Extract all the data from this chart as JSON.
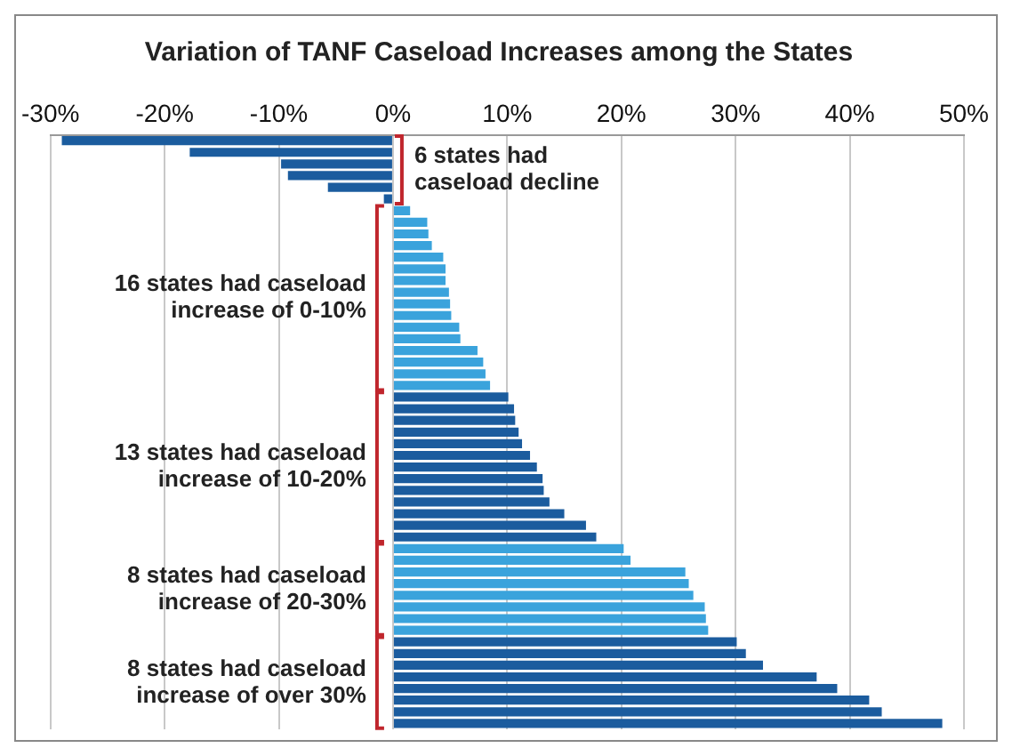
{
  "chart_data": {
    "type": "bar",
    "orientation": "horizontal",
    "title": "Variation of TANF Caseload Increases among the States",
    "categories": [
      null,
      null,
      null,
      null,
      null,
      null,
      null,
      null,
      null,
      null,
      null,
      null,
      null,
      null,
      null,
      null,
      null,
      null,
      null,
      null,
      null,
      null,
      null,
      null,
      null,
      null,
      null,
      null,
      null,
      null,
      null,
      null,
      null,
      null,
      null,
      null,
      null,
      null,
      null,
      null,
      null,
      null,
      null,
      null,
      null,
      null,
      null,
      null,
      null,
      null,
      null
    ],
    "values": [
      -29,
      -17.8,
      -9.8,
      -9.2,
      -5.7,
      -0.8,
      1.5,
      3,
      3.1,
      3.4,
      4.4,
      4.6,
      4.6,
      4.9,
      5,
      5.1,
      5.8,
      5.9,
      7.4,
      7.9,
      8.1,
      8.5,
      10.1,
      10.6,
      10.7,
      11,
      11.3,
      12,
      12.6,
      13.1,
      13.2,
      13.7,
      15,
      16.9,
      17.8,
      20.2,
      20.8,
      25.6,
      25.9,
      26.3,
      27.3,
      27.4,
      27.6,
      30.1,
      30.9,
      32.4,
      37.1,
      38.9,
      41.7,
      42.8,
      48.1
    ],
    "colors": [
      "#1b5c9e",
      "#1b5c9e",
      "#1b5c9e",
      "#1b5c9e",
      "#1b5c9e",
      "#1b5c9e",
      "#3aa3dc",
      "#3aa3dc",
      "#3aa3dc",
      "#3aa3dc",
      "#3aa3dc",
      "#3aa3dc",
      "#3aa3dc",
      "#3aa3dc",
      "#3aa3dc",
      "#3aa3dc",
      "#3aa3dc",
      "#3aa3dc",
      "#3aa3dc",
      "#3aa3dc",
      "#3aa3dc",
      "#3aa3dc",
      "#1b5c9e",
      "#1b5c9e",
      "#1b5c9e",
      "#1b5c9e",
      "#1b5c9e",
      "#1b5c9e",
      "#1b5c9e",
      "#1b5c9e",
      "#1b5c9e",
      "#1b5c9e",
      "#1b5c9e",
      "#1b5c9e",
      "#1b5c9e",
      "#3aa3dc",
      "#3aa3dc",
      "#3aa3dc",
      "#3aa3dc",
      "#3aa3dc",
      "#3aa3dc",
      "#3aa3dc",
      "#3aa3dc",
      "#1b5c9e",
      "#1b5c9e",
      "#1b5c9e",
      "#1b5c9e",
      "#1b5c9e",
      "#1b5c9e",
      "#1b5c9e",
      "#1b5c9e"
    ],
    "xlim": [
      -30,
      50
    ],
    "xticks": [
      {
        "value": -30,
        "label": "-30%"
      },
      {
        "value": -20,
        "label": "-20%"
      },
      {
        "value": -10,
        "label": "-10%"
      },
      {
        "value": 0,
        "label": "0%"
      },
      {
        "value": 10,
        "label": "10%"
      },
      {
        "value": 20,
        "label": "20%"
      },
      {
        "value": 30,
        "label": "30%"
      },
      {
        "value": 40,
        "label": "40%"
      },
      {
        "value": 50,
        "label": "50%"
      }
    ],
    "grid": "x",
    "legend": false,
    "annotations": [
      "6 states had caseload decline",
      "16 states had caseload increase of 0-10%",
      "13 states had caseload increase of 10-20%",
      "8 states had caseload increase of 20-30%",
      "8 states had caseload increase of over 30%"
    ]
  }
}
